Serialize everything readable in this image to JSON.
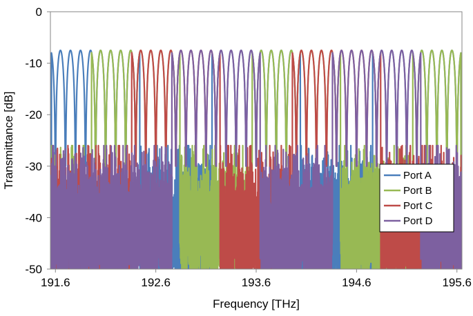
{
  "chart_data": {
    "type": "line",
    "xlabel": "Frequency [THz]",
    "ylabel": "Transmittance [dB]",
    "xlim": [
      191.55,
      195.65
    ],
    "ylim": [
      -50,
      0
    ],
    "xticks": [
      191.6,
      192.6,
      193.6,
      194.6,
      195.6
    ],
    "xtick_labels": [
      "191.6",
      "192.6",
      "193.6",
      "194.6",
      "195.6"
    ],
    "yticks": [
      0,
      -10,
      -20,
      -30,
      -40,
      -50
    ],
    "ytick_labels": [
      "0",
      "-10",
      "-20",
      "-30",
      "-40",
      "-50"
    ],
    "grid": false,
    "legend_position": "right",
    "channel_spacing_thz": 0.1,
    "peak_level_db": -7.5,
    "series": [
      {
        "name": "Port A",
        "color": "#4a7ebb",
        "passbands": [
          [
            191.6,
            192.4
          ],
          [
            193.2,
            194.0
          ],
          [
            194.8,
            195.6
          ]
        ],
        "first_peak": 191.65
      },
      {
        "name": "Port B",
        "color": "#98b954",
        "passbands": [
          [
            192.0,
            192.8
          ],
          [
            193.6,
            194.4
          ],
          [
            195.2,
            195.6
          ]
        ],
        "first_peak": 192.05
      },
      {
        "name": "Port C",
        "color": "#be4b48",
        "passbands": [
          [
            192.4,
            193.2
          ],
          [
            194.0,
            194.8
          ]
        ],
        "first_peak": 192.45
      },
      {
        "name": "Port D",
        "color": "#7d60a0",
        "passbands": [
          [
            192.8,
            193.6
          ],
          [
            194.4,
            195.2
          ]
        ],
        "first_peak": 192.85
      }
    ]
  }
}
